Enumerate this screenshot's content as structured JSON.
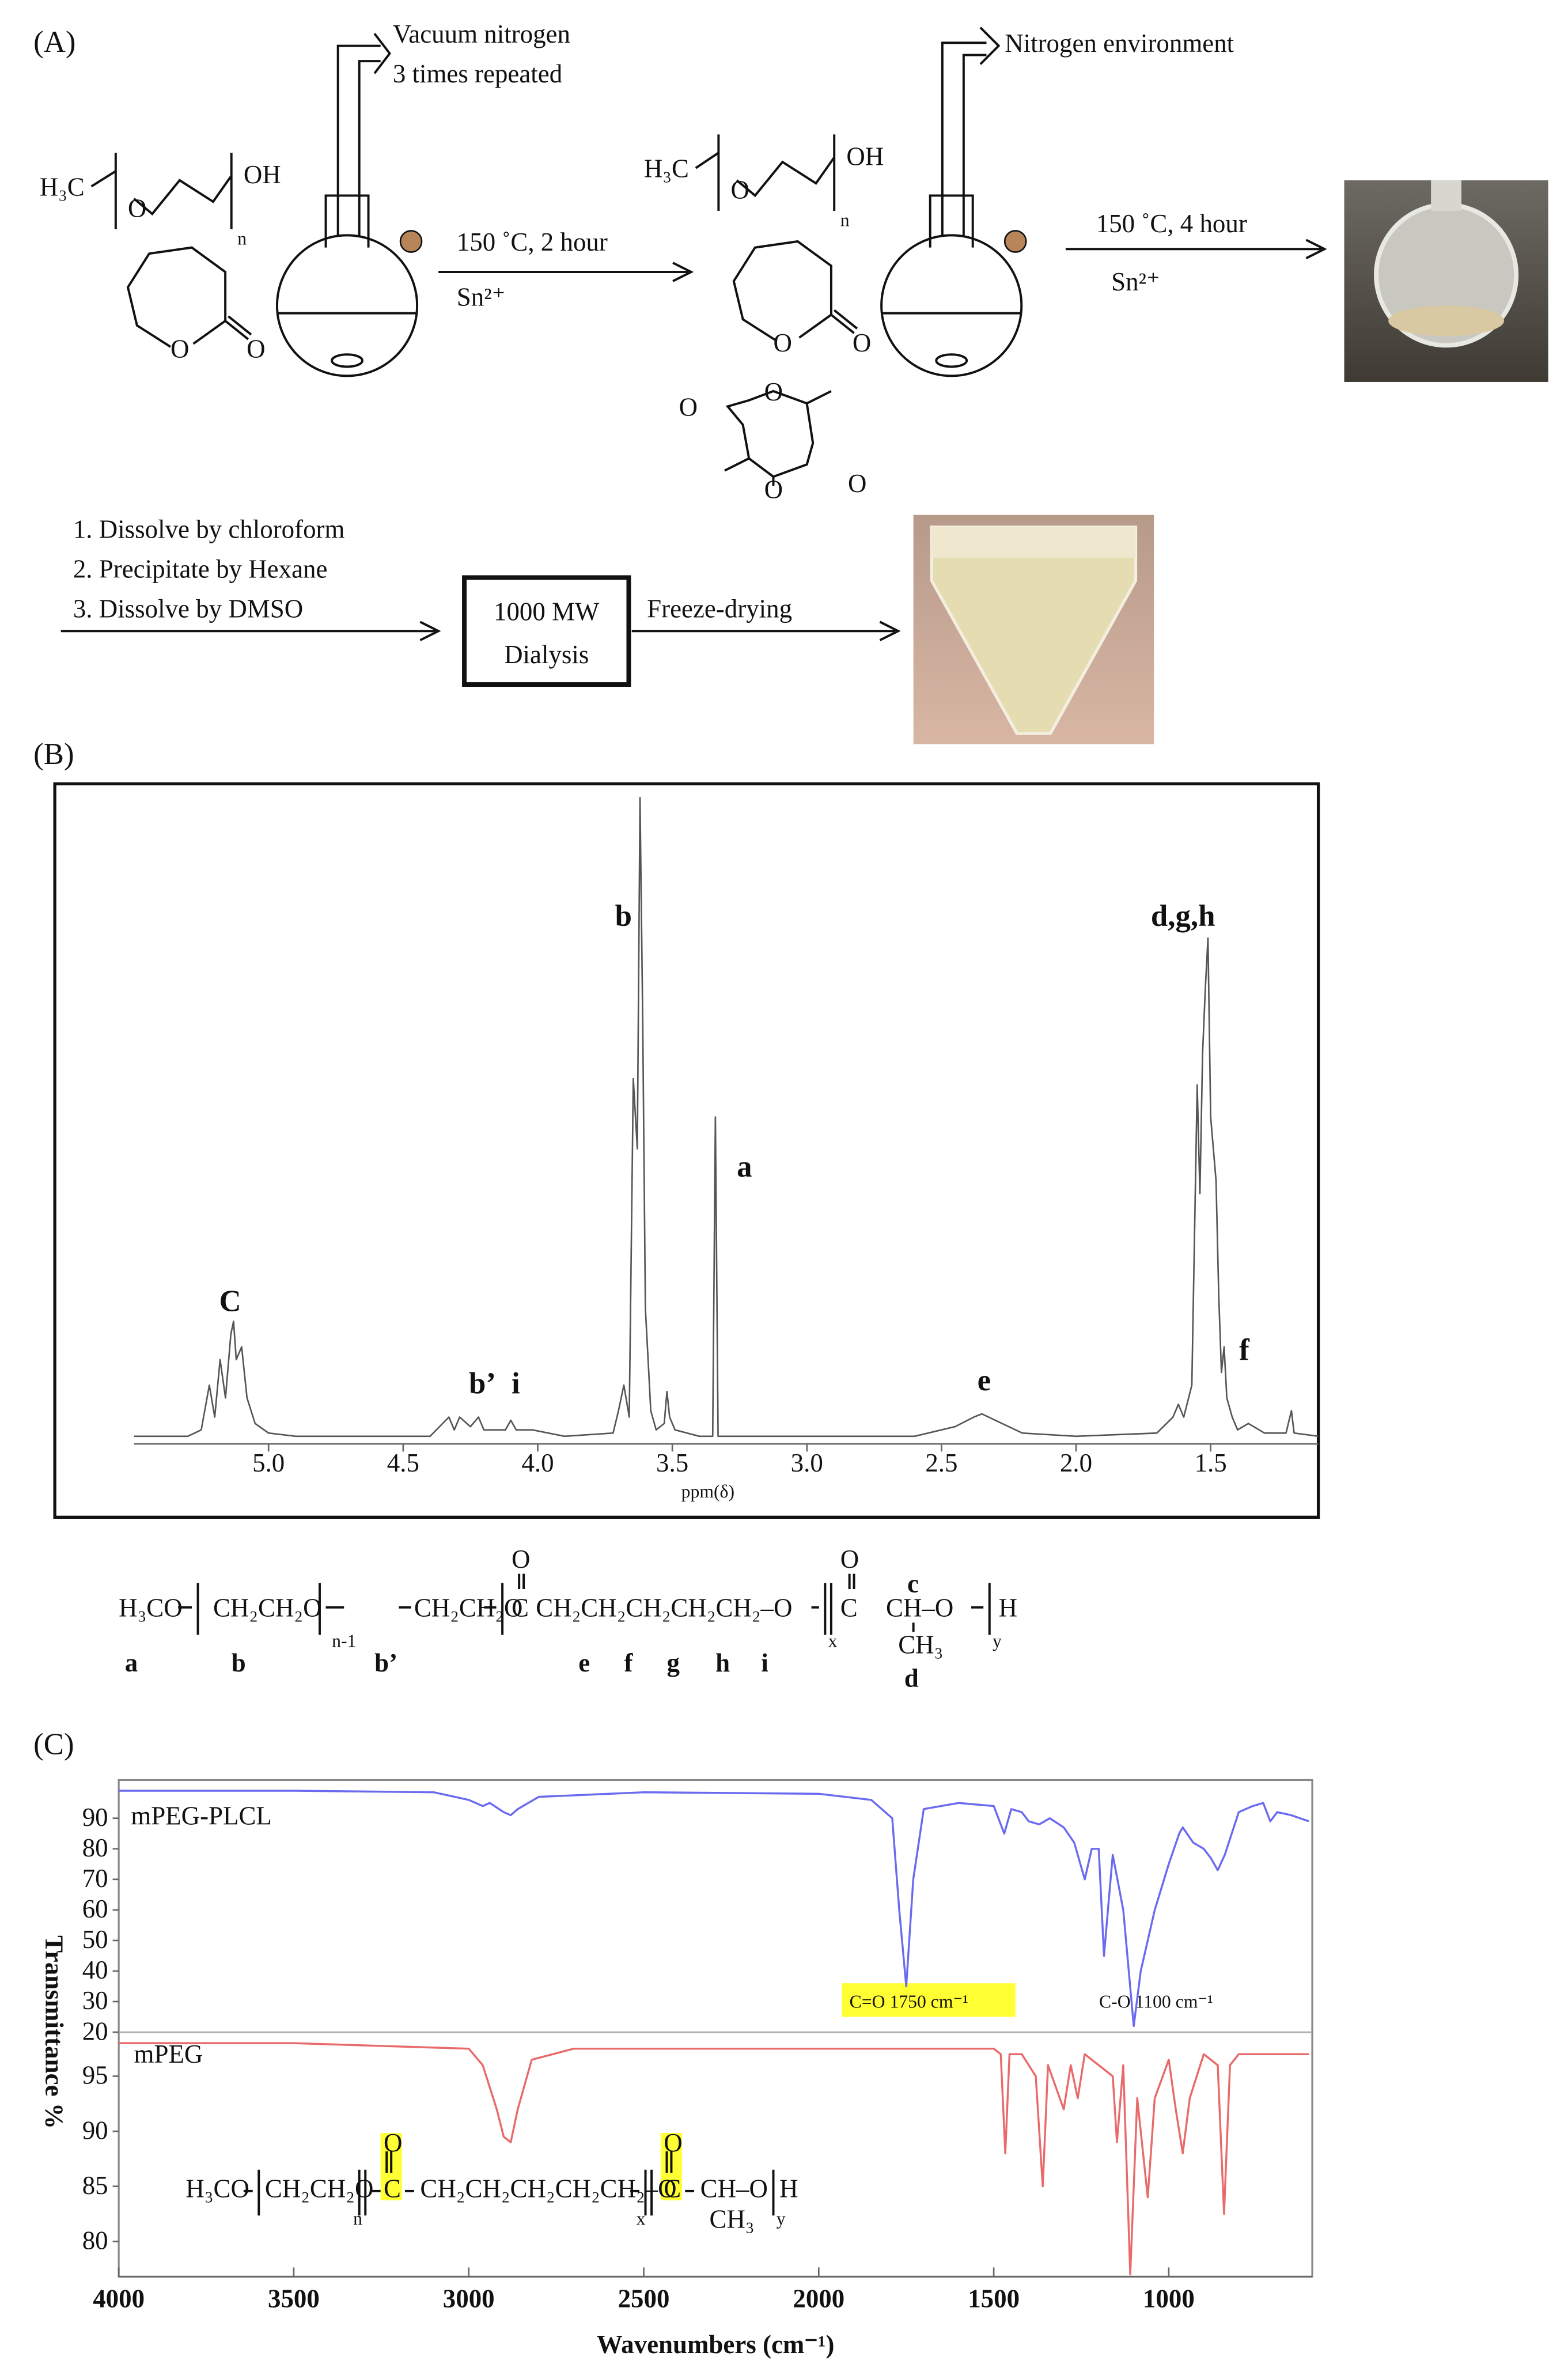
{
  "panel_labels": [
    "(A)",
    "(B)",
    "(C)"
  ],
  "scheme": {
    "atom_o": "O",
    "mpeg_left": "H₃C",
    "mpeg_right": "OH",
    "mpeg_repeat": "n",
    "step1_gas": [
      "Vacuum nitrogen",
      "3 times repeated"
    ],
    "step1_conditions": "150 ˚C, 2 hour",
    "step1_catalyst": "Sn²⁺",
    "step2_gas": "Nitrogen environment",
    "step2_conditions": "150 ˚C, 4 hour",
    "step2_catalyst": "Sn²⁺",
    "purification_steps": [
      "1. Dissolve by chloroform",
      "2. Precipitate by Hexane",
      "3. Dissolve by DMSO"
    ],
    "dialysis": [
      "1000 MW",
      "Dialysis"
    ],
    "drying": "Freeze-drying"
  },
  "nmr_structure": {
    "parts": [
      "H₃CO",
      "CH₂CH₂O",
      "CH₂CH₂O",
      "C",
      "CH₂CH₂CH₂CH₂CH₂–O",
      "C",
      "CH–O",
      "H"
    ],
    "carbonyl": "O",
    "side": [
      "c",
      "CH₃"
    ],
    "subscripts": [
      "n-1",
      "x",
      "y"
    ],
    "proton_labels": [
      "a",
      "b",
      "b’",
      "e",
      "f",
      "g",
      "h",
      "i",
      "d"
    ]
  },
  "ftir_inset_structure": {
    "parts": [
      "H₃CO",
      "CH₂CH₂O",
      "C",
      "CH₂CH₂CH₂CH₂CH₂–O",
      "C",
      "CH–O",
      "H",
      "CH₃"
    ],
    "carbonyl": "O",
    "subscripts": [
      "n",
      "x",
      "y"
    ]
  },
  "chart_data": [
    {
      "type": "line",
      "xlabel": "ppm(δ)",
      "xlim": [
        5.5,
        1.1
      ],
      "ylim": [
        0,
        100
      ],
      "xticks": [
        {
          "value": 5,
          "label": "5.0"
        },
        4.5,
        {
          "value": 4,
          "label": "4.0"
        },
        3.5,
        {
          "value": 3,
          "label": "3.0"
        },
        2.5,
        {
          "value": 2,
          "label": "2.0"
        },
        1.5
      ],
      "annotations": [
        "C",
        "b’",
        "i",
        "b",
        "a",
        "e",
        "d,g,h",
        "f"
      ],
      "series": [
        {
          "color": "#555555",
          "x": [
            5.5,
            5.3,
            5.25,
            5.22,
            5.2,
            5.18,
            5.16,
            5.14,
            5.13,
            5.12,
            5.1,
            5.08,
            5.05,
            5.0,
            4.9,
            4.4,
            4.33,
            4.31,
            4.29,
            4.25,
            4.22,
            4.2,
            4.12,
            4.1,
            4.08,
            4.02,
            3.9,
            3.72,
            3.7,
            3.68,
            3.66,
            3.645,
            3.63,
            3.62,
            3.61,
            3.6,
            3.58,
            3.56,
            3.53,
            3.52,
            3.51,
            3.49,
            3.4,
            3.35,
            3.34,
            3.33,
            3.3,
            3.0,
            2.6,
            2.45,
            2.38,
            2.35,
            2.3,
            2.2,
            2.0,
            1.7,
            1.64,
            1.62,
            1.6,
            1.57,
            1.55,
            1.54,
            1.53,
            1.52,
            1.51,
            1.5,
            1.49,
            1.48,
            1.47,
            1.46,
            1.45,
            1.44,
            1.42,
            1.4,
            1.36,
            1.34,
            1.3,
            1.22,
            1.2,
            1.19,
            1.1
          ],
          "values": [
            0,
            0,
            1,
            8,
            3,
            12,
            6,
            16,
            18,
            12,
            14,
            6,
            2,
            0.5,
            0,
            0,
            3,
            1,
            3,
            1.5,
            3,
            1,
            1,
            2.5,
            1,
            1,
            0,
            0.5,
            4,
            8,
            3,
            56,
            45,
            100,
            65,
            20,
            4,
            1,
            2,
            7,
            3,
            1,
            0,
            0,
            50,
            0,
            0,
            0,
            0,
            1.5,
            3,
            3.5,
            2.5,
            0.5,
            0,
            0.5,
            3,
            5,
            3,
            8,
            55,
            38,
            60,
            70,
            78,
            50,
            45,
            40,
            22,
            10,
            14,
            6,
            3,
            1,
            2,
            1.5,
            0.5,
            0.5,
            4,
            0.5,
            0
          ]
        }
      ]
    },
    {
      "type": "line",
      "ylabel": "Transmittance %",
      "xlim": [
        4000,
        590
      ],
      "ylim": [
        20,
        102.5
      ],
      "yticks": [
        20,
        30,
        40,
        50,
        60,
        70,
        80,
        90
      ],
      "annotations": [
        "C=O 1750 cm⁻¹",
        "C-O 1100 cm⁻¹"
      ],
      "series": [
        {
          "name": "mPEG-PLCL",
          "color": "#6a6af0",
          "x": [
            4000,
            3500,
            3100,
            3000,
            2960,
            2940,
            2900,
            2880,
            2860,
            2800,
            2500,
            2000,
            1850,
            1790,
            1770,
            1750,
            1730,
            1700,
            1600,
            1500,
            1470,
            1450,
            1420,
            1400,
            1370,
            1340,
            1300,
            1270,
            1240,
            1220,
            1200,
            1185,
            1170,
            1160,
            1130,
            1100,
            1080,
            1060,
            1040,
            1000,
            970,
            960,
            930,
            900,
            880,
            860,
            840,
            800,
            760,
            730,
            710,
            690,
            650,
            600
          ],
          "values": [
            99,
            99,
            98.5,
            96,
            94,
            95,
            92,
            91,
            93,
            97,
            98.5,
            98,
            96,
            90,
            60,
            35,
            70,
            93,
            95,
            94,
            85,
            93,
            92,
            89,
            88,
            90,
            87,
            82,
            70,
            80,
            80,
            45,
            65,
            78,
            60,
            22,
            40,
            50,
            60,
            75,
            85,
            87,
            82,
            80,
            77,
            73,
            78,
            92,
            94,
            95,
            89,
            92,
            91,
            89
          ]
        }
      ]
    },
    {
      "type": "line",
      "xlabel": "Wavenumbers (cm⁻¹)",
      "xlim": [
        4000,
        590
      ],
      "ylim": [
        76.8,
        99
      ],
      "yticks": [
        80,
        85,
        90,
        95
      ],
      "xticks": [
        4000,
        3500,
        3000,
        2500,
        2000,
        1500,
        1000
      ],
      "series": [
        {
          "name": "mPEG",
          "color": "#e86a6a",
          "x": [
            4000,
            3500,
            3000,
            2960,
            2920,
            2900,
            2880,
            2860,
            2820,
            2700,
            2000,
            1500,
            1480,
            1467,
            1455,
            1420,
            1380,
            1360,
            1345,
            1300,
            1280,
            1260,
            1240,
            1200,
            1160,
            1148,
            1130,
            1110,
            1090,
            1070,
            1060,
            1040,
            1000,
            980,
            960,
            940,
            900,
            860,
            842,
            825,
            800,
            700,
            600
          ],
          "values": [
            98,
            98,
            97.5,
            96,
            92,
            89.5,
            89,
            92,
            96.5,
            97.5,
            97.5,
            97.5,
            97,
            88,
            97,
            97,
            95,
            85,
            96,
            92,
            96,
            93,
            97,
            96,
            95,
            89,
            96,
            77,
            93,
            87,
            84,
            93,
            96.5,
            92,
            88,
            93,
            97,
            96,
            82.5,
            96,
            97,
            97,
            97
          ]
        }
      ]
    }
  ]
}
